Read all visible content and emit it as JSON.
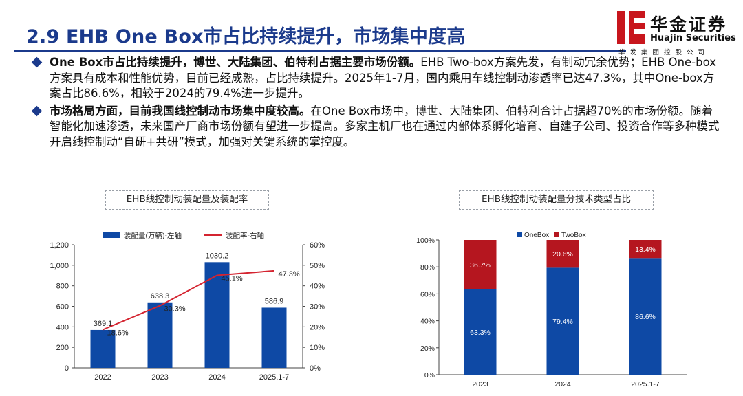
{
  "header": {
    "title": "2.9 EHB One Box市占比持续提升，市场集中度高",
    "logo_cn": "华金证券",
    "logo_en": "Huajin Securities",
    "logo_sub": "华发集团控股公司"
  },
  "bullets": [
    {
      "bold": "One Box市占比持续提升，博世、大陆集团、伯特利占据主要市场份额。",
      "text": "EHB Two-box方案先发，有制动冗余优势；EHB One-box方案具有成本和性能优势，目前已经成熟，占比持续提升。2025年1-7月，国内乘用车线控制动渗透率已达47.3%，其中One-box方案占比86.6%，相较于2024的79.4%进一步提升。"
    },
    {
      "bold": "市场格局方面，目前我国线控制动市场集中度较高。",
      "text": "在One Box市场中，博世、大陆集团、伯特利合计占据超70%的市场份额。随着智能化加速渗透，未来国产厂商市场份额有望进一步提高。多家主机厂也在通过内部体系孵化培育、自建子公司、投资合作等多种模式开启线控制动“自研+共研”模式，加强对关键系统的掌控度。"
    }
  ],
  "colors": {
    "brand_blue": "#1b3a8c",
    "bar_blue": "#0e49a5",
    "line_red": "#d42430",
    "twobox_red": "#b5161f"
  },
  "chart_data": [
    {
      "type": "bar",
      "title": "EHB线控制动装配量及装配率",
      "categories": [
        "2022",
        "2023",
        "2024",
        "2025.1-7"
      ],
      "series": [
        {
          "name": "装配量(万辆)-左轴",
          "type": "bar",
          "axis": "left",
          "values": [
            369.1,
            638.3,
            1030.2,
            586.9
          ],
          "labels": [
            "369.1",
            "638.3",
            "1030.2",
            "586.9"
          ]
        },
        {
          "name": "装配率-右轴",
          "type": "line",
          "axis": "right",
          "values": [
            18.6,
            30.3,
            45.1,
            47.3
          ],
          "labels": [
            "18.6%",
            "30.3%",
            "45.1%",
            "47.3%"
          ]
        }
      ],
      "ylim_left": [
        0,
        1200
      ],
      "yticks_left": [
        "0",
        "200",
        "400",
        "600",
        "800",
        "1,000",
        "1,200"
      ],
      "ylim_right": [
        0,
        60
      ],
      "yticks_right": [
        "0%",
        "10%",
        "20%",
        "30%",
        "40%",
        "50%",
        "60%"
      ],
      "legend_position": "top",
      "grid": false
    },
    {
      "type": "bar",
      "stacked": true,
      "title": "EHB线控制动装配量分技术类型占比",
      "categories": [
        "2023",
        "2024",
        "2025.1-7"
      ],
      "series": [
        {
          "name": "OneBox",
          "values": [
            63.3,
            79.4,
            86.6
          ],
          "labels": [
            "63.3%",
            "79.4%",
            "86.6%"
          ]
        },
        {
          "name": "TwoBox",
          "values": [
            36.7,
            20.6,
            13.4
          ],
          "labels": [
            "36.7%",
            "20.6%",
            "13.4%"
          ]
        }
      ],
      "ylim": [
        0,
        100
      ],
      "yticks": [
        "0%",
        "20%",
        "40%",
        "60%",
        "80%",
        "100%"
      ],
      "legend_position": "top",
      "grid": false
    }
  ]
}
